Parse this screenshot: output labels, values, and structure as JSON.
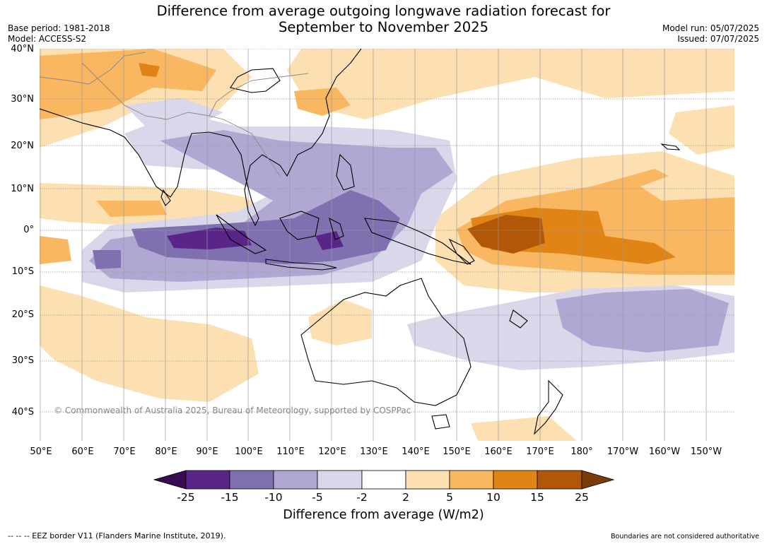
{
  "title_line1": "Difference from average outgoing longwave radiation forecast for",
  "title_line2": "September to November 2025",
  "meta_left": {
    "base_period": "Base period: 1981-2018",
    "model": "Model: ACCESS-S2"
  },
  "meta_right": {
    "model_run": "Model run: 05/07/2025",
    "issued": "Issued: 07/07/2025"
  },
  "lat_labels": [
    "40°N",
    "30°N",
    "20°N",
    "10°N",
    "0°",
    "10°S",
    "20°S",
    "30°S",
    "40°S"
  ],
  "lon_labels": [
    "50°E",
    "60°E",
    "70°E",
    "80°E",
    "90°E",
    "100°E",
    "110°E",
    "120°E",
    "130°E",
    "140°E",
    "150°E",
    "160°E",
    "170°E",
    "180°",
    "170°W",
    "160°W",
    "150°W"
  ],
  "colorbar": {
    "ticks": [
      "-25",
      "-15",
      "-10",
      "-5",
      "-2",
      "2",
      "5",
      "10",
      "15",
      "25"
    ],
    "colors": [
      "#3b0a52",
      "#5a2589",
      "#8070b0",
      "#b0a8d2",
      "#d8d8ea",
      "#ffffff",
      "#fde0b2",
      "#f9b762",
      "#e08416",
      "#b25608",
      "#7a3a0a"
    ],
    "title": "Difference from average (W/m2)"
  },
  "copyright": "© Commonwealth of Australia 2025, Bureau of Meteorology, supported by COSPPac",
  "footer_left": "--  --  -- EEZ border V11 (Flanders Marine Institute, 2019).",
  "footer_right": "Boundaries are not considered authoritative"
}
